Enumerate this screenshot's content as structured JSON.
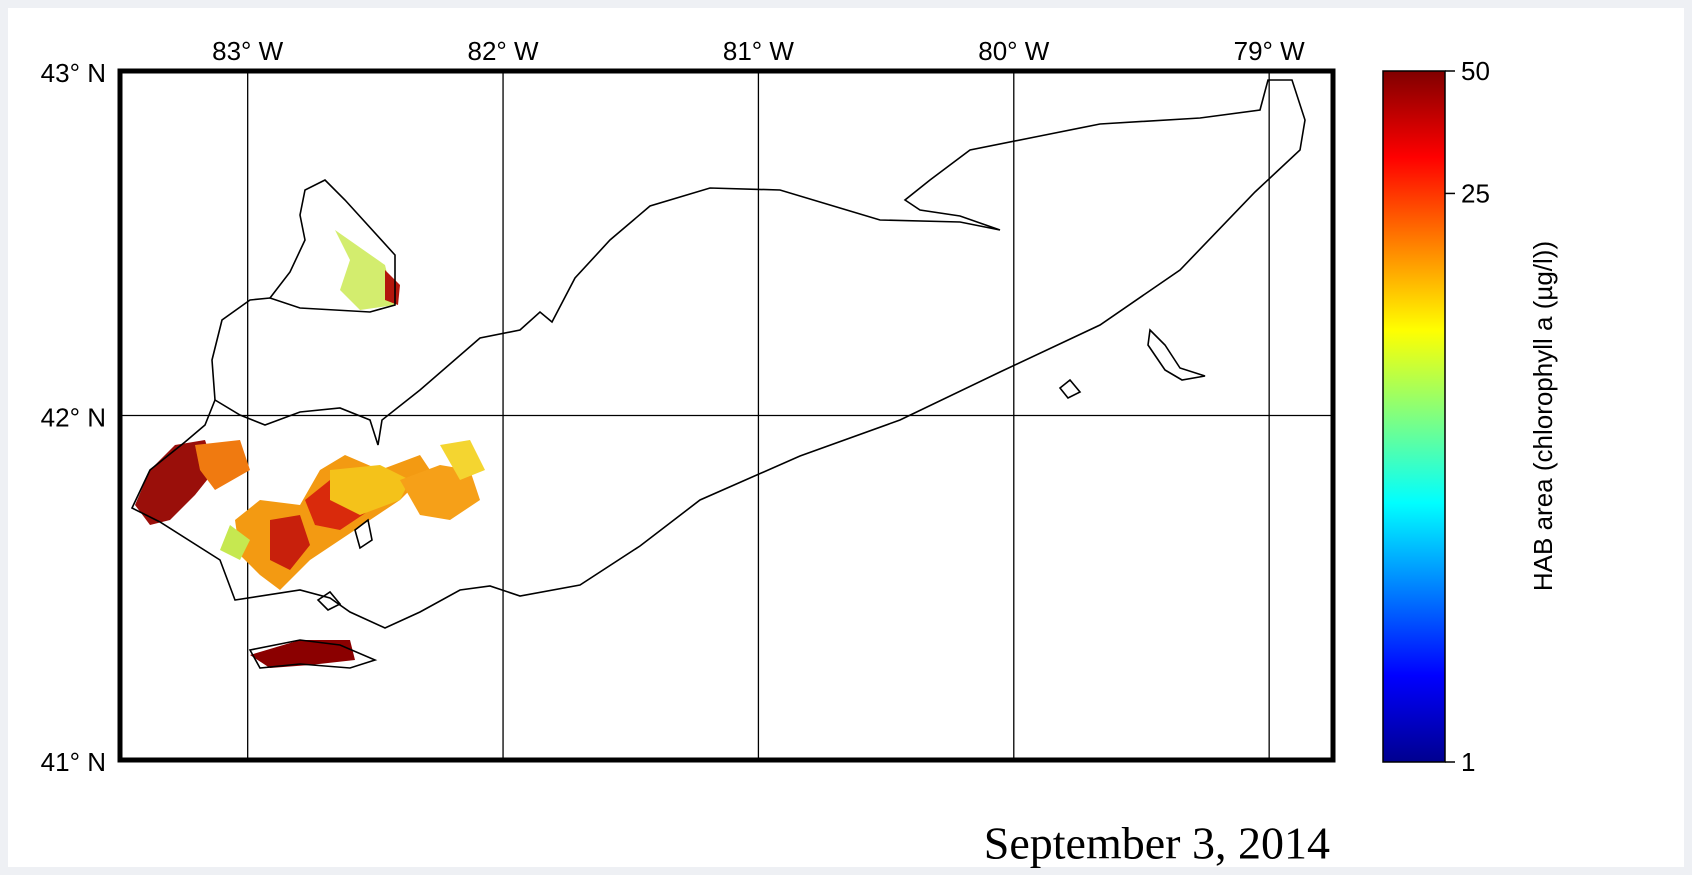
{
  "map": {
    "lon_ticks": [
      {
        "value": -83,
        "label": "83° W"
      },
      {
        "value": -82,
        "label": "82° W"
      },
      {
        "value": -81,
        "label": "81° W"
      },
      {
        "value": -80,
        "label": "80° W"
      },
      {
        "value": -79,
        "label": "79° W"
      }
    ],
    "lat_ticks": [
      {
        "value": 43,
        "label": "43° N"
      },
      {
        "value": 42,
        "label": "42° N"
      },
      {
        "value": 41,
        "label": "41° N"
      }
    ],
    "xlim": [
      -83.5,
      -78.75
    ],
    "ylim": [
      41,
      43
    ],
    "grid": true
  },
  "colorbar": {
    "label": "HAB area (chlorophyll a (µg/l))",
    "lim": [
      1,
      50
    ],
    "ticks": [
      1,
      25,
      50
    ],
    "log": true,
    "colormap": "jet"
  },
  "date": "September 3, 2014"
}
